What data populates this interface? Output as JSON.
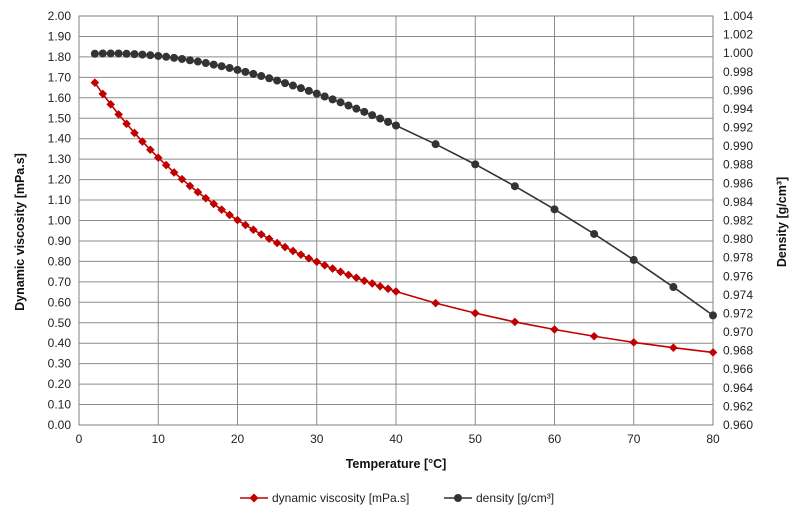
{
  "chart_data": {
    "type": "line",
    "xlabel": "Temperature  [°C]",
    "ylabel_left": "Dynamic viscosity [mPa.s]",
    "ylabel_right": "Density  [g/cm³]",
    "xlim": [
      0,
      80
    ],
    "ylim_left": [
      0,
      2
    ],
    "ylim_right": [
      0.96,
      1.004
    ],
    "x_ticks": [
      "0",
      "10",
      "20",
      "30",
      "40",
      "50",
      "60",
      "70",
      "80"
    ],
    "y_left_ticks": [
      "0.00",
      "0.10",
      "0.20",
      "0.30",
      "0.40",
      "0.50",
      "0.60",
      "0.70",
      "0.80",
      "0.90",
      "1.00",
      "1.10",
      "1.20",
      "1.30",
      "1.40",
      "1.50",
      "1.60",
      "1.70",
      "1.80",
      "1.90",
      "2.00"
    ],
    "y_right_ticks": [
      "0.960",
      "0.962",
      "0.964",
      "0.966",
      "0.968",
      "0.970",
      "0.972",
      "0.974",
      "0.976",
      "0.978",
      "0.980",
      "0.982",
      "0.984",
      "0.986",
      "0.988",
      "0.990",
      "0.992",
      "0.994",
      "0.996",
      "0.998",
      "1.000",
      "1.002",
      "1.004"
    ],
    "grid": true,
    "legend_position": "bottom",
    "series": [
      {
        "name": "dynamic viscosity [mPa.s]",
        "axis": "left",
        "color": "#c00000",
        "marker": "diamond",
        "x": [
          2,
          3,
          4,
          5,
          6,
          7,
          8,
          9,
          10,
          11,
          12,
          13,
          14,
          15,
          16,
          17,
          18,
          19,
          20,
          21,
          22,
          23,
          24,
          25,
          26,
          27,
          28,
          29,
          30,
          31,
          32,
          33,
          34,
          35,
          36,
          37,
          38,
          39,
          40,
          45,
          50,
          55,
          60,
          65,
          70,
          75,
          80
        ],
        "y": [
          1.674,
          1.619,
          1.568,
          1.519,
          1.473,
          1.428,
          1.386,
          1.346,
          1.307,
          1.271,
          1.235,
          1.202,
          1.169,
          1.139,
          1.109,
          1.081,
          1.053,
          1.027,
          1.002,
          0.978,
          0.955,
          0.932,
          0.911,
          0.89,
          0.87,
          0.851,
          0.833,
          0.815,
          0.798,
          0.781,
          0.765,
          0.749,
          0.734,
          0.72,
          0.705,
          0.692,
          0.678,
          0.666,
          0.653,
          0.596,
          0.547,
          0.504,
          0.467,
          0.434,
          0.404,
          0.378,
          0.355
        ]
      },
      {
        "name": "density [g/cm³]",
        "axis": "right",
        "color": "#333333",
        "marker": "circle",
        "x": [
          2,
          3,
          4,
          5,
          6,
          7,
          8,
          9,
          10,
          11,
          12,
          13,
          14,
          15,
          16,
          17,
          18,
          19,
          20,
          21,
          22,
          23,
          24,
          25,
          26,
          27,
          28,
          29,
          30,
          31,
          32,
          33,
          34,
          35,
          36,
          37,
          38,
          39,
          40,
          45,
          50,
          55,
          60,
          65,
          70,
          75,
          80
        ],
        "y": [
          0.99994,
          0.99997,
          0.99997,
          0.99997,
          0.99994,
          0.9999,
          0.99985,
          0.99978,
          0.9997,
          0.99961,
          0.9995,
          0.99938,
          0.99924,
          0.9991,
          0.99894,
          0.99877,
          0.9986,
          0.99841,
          0.9982,
          0.99799,
          0.99777,
          0.99754,
          0.9973,
          0.99705,
          0.99678,
          0.99652,
          0.99624,
          0.99595,
          0.99565,
          0.99534,
          0.99503,
          0.99471,
          0.99437,
          0.99403,
          0.99369,
          0.99333,
          0.99297,
          0.9926,
          0.99222,
          0.99021,
          0.98804,
          0.98569,
          0.9832,
          0.98055,
          0.97776,
          0.97484,
          0.97179
        ]
      }
    ]
  }
}
